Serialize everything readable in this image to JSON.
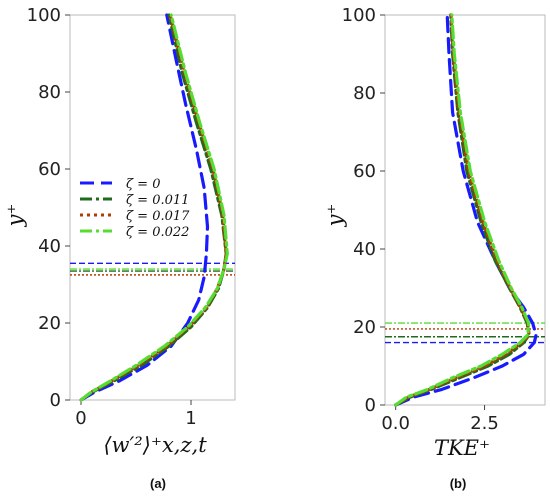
{
  "colors": {
    "s0": "#1a1aff",
    "s1": "#1e6b1e",
    "s2": "#b33c00",
    "s3": "#55dd33"
  },
  "chart_data": [
    {
      "type": "line",
      "panel": "(a)",
      "xlabel": "⟨w′²⟩⁺x,z,t",
      "ylabel": "y⁺",
      "xlim": [
        -0.1,
        1.4
      ],
      "ylim": [
        0,
        100
      ],
      "xticks": [
        0,
        1
      ],
      "yticks": [
        0,
        20,
        40,
        60,
        80,
        100
      ],
      "legend_position": "center-left",
      "series": [
        {
          "name": "ζ = 0",
          "color": "#1a1aff",
          "dash": "14,7",
          "x": [
            0,
            0.12,
            0.35,
            0.6,
            0.82,
            0.97,
            1.07,
            1.12,
            1.14,
            1.15,
            1.12,
            1.05,
            0.95,
            0.86,
            0.78
          ],
          "y": [
            0,
            2,
            5,
            9,
            14,
            20,
            26,
            32,
            38,
            45,
            55,
            65,
            77,
            89,
            100
          ],
          "hline": 35.5
        },
        {
          "name": "ζ = 0.011",
          "color": "#1e6b1e",
          "dash": "12,4,3,4",
          "x": [
            0,
            0.1,
            0.3,
            0.55,
            0.8,
            1.0,
            1.15,
            1.25,
            1.3,
            1.32,
            1.28,
            1.18,
            1.05,
            0.92,
            0.8
          ],
          "y": [
            0,
            2,
            5,
            9,
            14,
            19,
            24,
            29,
            34,
            38,
            48,
            60,
            72,
            85,
            100
          ],
          "hline": 33.5
        },
        {
          "name": "ζ = 0.017",
          "color": "#b33c00",
          "dash": "3,4",
          "x": [
            0,
            0.09,
            0.28,
            0.52,
            0.78,
            0.98,
            1.14,
            1.24,
            1.3,
            1.32,
            1.29,
            1.2,
            1.07,
            0.94,
            0.81
          ],
          "y": [
            0,
            2,
            5,
            9,
            14,
            19,
            24,
            29,
            34,
            38,
            48,
            60,
            72,
            85,
            100
          ],
          "hline": 32.5
        },
        {
          "name": "ζ = 0.022",
          "color": "#55dd33",
          "dash": "12,4,3,4",
          "x": [
            0,
            0.09,
            0.27,
            0.5,
            0.76,
            0.97,
            1.13,
            1.24,
            1.3,
            1.33,
            1.3,
            1.21,
            1.08,
            0.95,
            0.82
          ],
          "y": [
            0,
            2,
            5,
            9,
            14,
            19,
            24,
            29,
            34,
            38,
            48,
            60,
            72,
            85,
            100
          ],
          "hline": 34
        }
      ]
    },
    {
      "type": "line",
      "panel": "(b)",
      "xlabel": "TKE⁺",
      "ylabel": "y⁺",
      "xlim": [
        -0.3,
        4.2
      ],
      "ylim": [
        0,
        100
      ],
      "xticks": [
        0.0,
        2.5
      ],
      "xtick_labels": [
        "0.0",
        "2.5"
      ],
      "yticks": [
        0,
        20,
        40,
        60,
        80,
        100
      ],
      "series": [
        {
          "name": "ζ = 0",
          "color": "#1a1aff",
          "dash": "14,7",
          "x": [
            0,
            0.5,
            1.3,
            2.2,
            3.0,
            3.6,
            3.9,
            3.95,
            3.85,
            3.6,
            3.2,
            2.8,
            2.3,
            1.9,
            1.6,
            1.5,
            1.45
          ],
          "y": [
            0,
            2,
            4,
            7,
            10,
            13,
            16,
            18,
            21,
            25,
            30,
            37,
            47,
            60,
            75,
            90,
            100
          ],
          "hline": 16
        },
        {
          "name": "ζ = 0.011",
          "color": "#1e6b1e",
          "dash": "12,4,3,4",
          "x": [
            0,
            0.4,
            1.0,
            1.8,
            2.6,
            3.2,
            3.6,
            3.75,
            3.7,
            3.5,
            3.2,
            2.8,
            2.4,
            2.0,
            1.75,
            1.6,
            1.55
          ],
          "y": [
            0,
            2,
            4,
            7,
            10,
            13,
            16,
            18,
            21,
            25,
            30,
            37,
            47,
            60,
            75,
            90,
            100
          ],
          "hline": 17.5
        },
        {
          "name": "ζ = 0.017",
          "color": "#b33c00",
          "dash": "3,4",
          "x": [
            0,
            0.35,
            0.95,
            1.7,
            2.5,
            3.1,
            3.55,
            3.75,
            3.72,
            3.52,
            3.22,
            2.85,
            2.45,
            2.05,
            1.78,
            1.62,
            1.56
          ],
          "y": [
            0,
            2,
            4,
            7,
            10,
            13,
            16,
            18,
            21,
            25,
            30,
            37,
            47,
            60,
            75,
            90,
            100
          ],
          "hline": 19.5
        },
        {
          "name": "ζ = 0.022",
          "color": "#55dd33",
          "dash": "12,4,3,4",
          "x": [
            0,
            0.3,
            0.9,
            1.6,
            2.4,
            3.0,
            3.5,
            3.72,
            3.74,
            3.55,
            3.25,
            2.9,
            2.5,
            2.1,
            1.82,
            1.65,
            1.58
          ],
          "y": [
            0,
            2,
            4,
            7,
            10,
            13,
            16,
            18,
            21,
            25,
            30,
            37,
            47,
            60,
            75,
            90,
            100
          ],
          "hline": 21
        }
      ]
    }
  ]
}
